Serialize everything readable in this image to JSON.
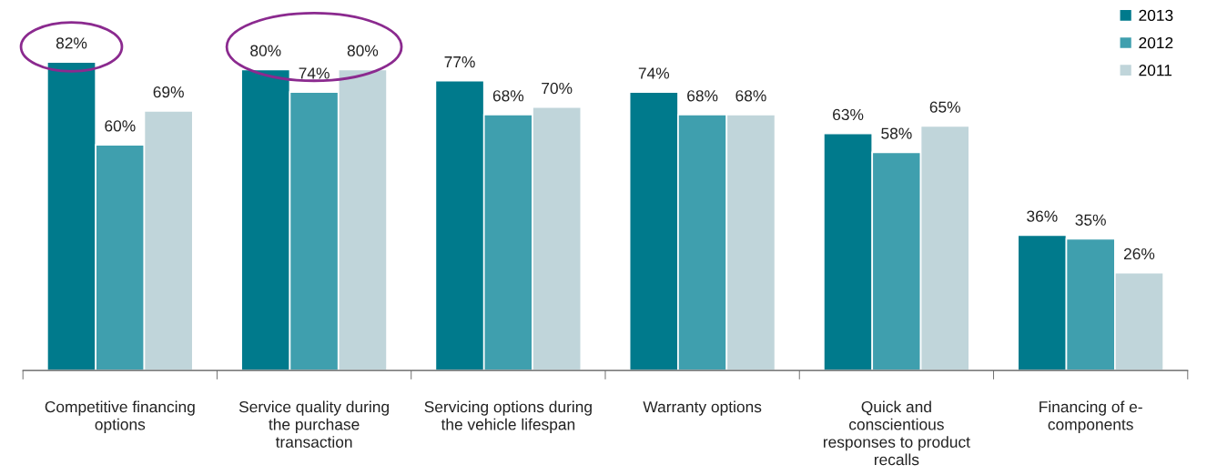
{
  "chart_data": {
    "type": "bar",
    "categories": [
      "Competitive financing\noptions",
      "Service quality during\nthe purchase\ntransaction",
      "Servicing options during\nthe vehicle lifespan",
      "Warranty options",
      "Quick and\nconscientious\nresponses to product\nrecalls",
      "Financing of e-\ncomponents"
    ],
    "series": [
      {
        "name": "2013",
        "color": "#007a8c",
        "values": [
          82,
          80,
          77,
          74,
          63,
          36
        ],
        "value_labels": [
          "82%",
          "80%",
          "77%",
          "74%",
          "63%",
          "36%"
        ]
      },
      {
        "name": "2012",
        "color": "#3f9fae",
        "values": [
          60,
          74,
          68,
          68,
          58,
          35
        ],
        "value_labels": [
          "60%",
          "74%",
          "68%",
          "68%",
          "58%",
          "35%"
        ]
      },
      {
        "name": "2011",
        "color": "#c0d5da",
        "values": [
          69,
          80,
          70,
          68,
          65,
          26
        ],
        "value_labels": [
          "69%",
          "80%",
          "70%",
          "68%",
          "65%",
          "26%"
        ]
      }
    ],
    "legend": "top right",
    "grid": false
  }
}
